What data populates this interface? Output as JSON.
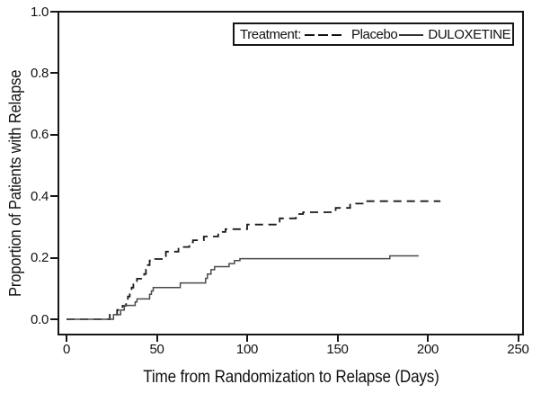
{
  "figure": {
    "background": "#ffffff",
    "frame_color": "#161616",
    "text_color": "#111111"
  },
  "chart_data": {
    "type": "line",
    "subtype": "kaplan-meier-step",
    "title": "",
    "xlabel": "Time from Randomization to Relapse (Days)",
    "ylabel": "Proportion of Patients with Relapse",
    "xlim": [
      0,
      250
    ],
    "ylim": [
      0.0,
      1.0
    ],
    "xticks": [
      "0",
      "50",
      "100",
      "150",
      "200",
      "250"
    ],
    "yticks": [
      "0.0",
      "0.2",
      "0.4",
      "0.6",
      "0.8",
      "1.0"
    ],
    "grid": "off",
    "legend": {
      "position": "top-right-inside",
      "title": "Treatment:",
      "entries": [
        {
          "label": "Placebo",
          "style": "dashed"
        },
        {
          "label": "DULOXETINE",
          "style": "solid"
        }
      ]
    },
    "series": [
      {
        "name": "Placebo",
        "style": "dashed",
        "color": "#1a1a1a",
        "stroke_width": 1.8,
        "step": "post",
        "points": [
          [
            0,
            0
          ],
          [
            24,
            0.015
          ],
          [
            28,
            0.03
          ],
          [
            31,
            0.044
          ],
          [
            33,
            0.059
          ],
          [
            34,
            0.074
          ],
          [
            35,
            0.088
          ],
          [
            36,
            0.103
          ],
          [
            37,
            0.118
          ],
          [
            39,
            0.132
          ],
          [
            43,
            0.147
          ],
          [
            44,
            0.161
          ],
          [
            45,
            0.176
          ],
          [
            46,
            0.191
          ],
          [
            49,
            0.196
          ],
          [
            55,
            0.22
          ],
          [
            62,
            0.235
          ],
          [
            68,
            0.25
          ],
          [
            70,
            0.257
          ],
          [
            76,
            0.269
          ],
          [
            84,
            0.284
          ],
          [
            88,
            0.293
          ],
          [
            100,
            0.308
          ],
          [
            118,
            0.328
          ],
          [
            127,
            0.342
          ],
          [
            131,
            0.348
          ],
          [
            149,
            0.362
          ],
          [
            157,
            0.376
          ],
          [
            164,
            0.384
          ],
          [
            207,
            0.384
          ]
        ]
      },
      {
        "name": "DULOXETINE",
        "style": "solid",
        "color": "#4a4a4a",
        "stroke_width": 1.5,
        "step": "post",
        "points": [
          [
            0,
            0
          ],
          [
            26,
            0.015
          ],
          [
            30,
            0.03
          ],
          [
            32,
            0.045
          ],
          [
            38,
            0.056
          ],
          [
            39,
            0.066
          ],
          [
            46,
            0.081
          ],
          [
            47,
            0.092
          ],
          [
            48,
            0.103
          ],
          [
            63,
            0.118
          ],
          [
            77,
            0.133
          ],
          [
            78,
            0.147
          ],
          [
            80,
            0.161
          ],
          [
            82,
            0.171
          ],
          [
            90,
            0.181
          ],
          [
            93,
            0.191
          ],
          [
            96,
            0.197
          ],
          [
            179,
            0.206
          ],
          [
            195,
            0.206
          ]
        ]
      }
    ]
  }
}
